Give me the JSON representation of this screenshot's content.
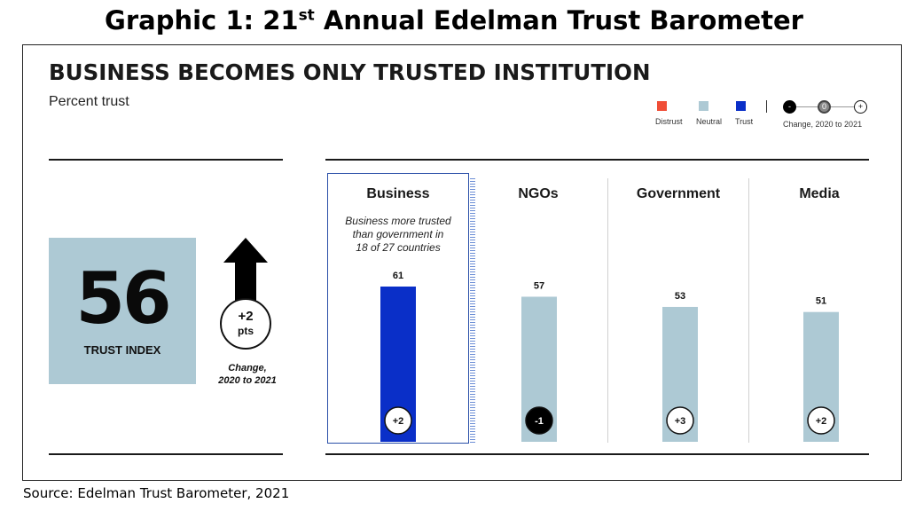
{
  "page": {
    "title_main": "Graphic 1: 21",
    "title_sup": "st",
    "title_rest": " Annual Edelman Trust Barometer",
    "source": "Source: Edelman Trust Barometer, 2021"
  },
  "slide": {
    "headline": "BUSINESS BECOMES ONLY TRUSTED INSTITUTION",
    "subhead": "Percent trust"
  },
  "legend": {
    "distrust": "Distrust",
    "neutral": "Neutral",
    "trust": "Trust",
    "neg_symbol": "-",
    "zero_symbol": "0",
    "pos_symbol": "+",
    "change_label": "Change, 2020 to 2021"
  },
  "trust_index": {
    "value": "56",
    "label": "TRUST INDEX",
    "change_value": "+2",
    "change_unit": "pts",
    "change_caption_1": "Change,",
    "change_caption_2": "2020 to 2021"
  },
  "business_note": {
    "line1": "Business more trusted",
    "line2": "than government in",
    "line3": "18 of 27 countries"
  },
  "colors": {
    "distrust": "#f04e37",
    "neutral": "#adc9d4",
    "trust": "#0a2fc8",
    "index_box": "#adc9d4",
    "negative_badge": "#000000"
  },
  "chart_data": {
    "type": "bar",
    "categories": [
      "Business",
      "NGOs",
      "Government",
      "Media"
    ],
    "values": [
      61,
      57,
      53,
      51
    ],
    "changes": [
      "+2",
      "-1",
      "+3",
      "+2"
    ],
    "trust_level": [
      "trust",
      "neutral",
      "neutral",
      "neutral"
    ],
    "title": "BUSINESS BECOMES ONLY TRUSTED INSTITUTION",
    "ylabel": "Percent trust",
    "ylim": [
      0,
      100
    ],
    "grid": false
  }
}
